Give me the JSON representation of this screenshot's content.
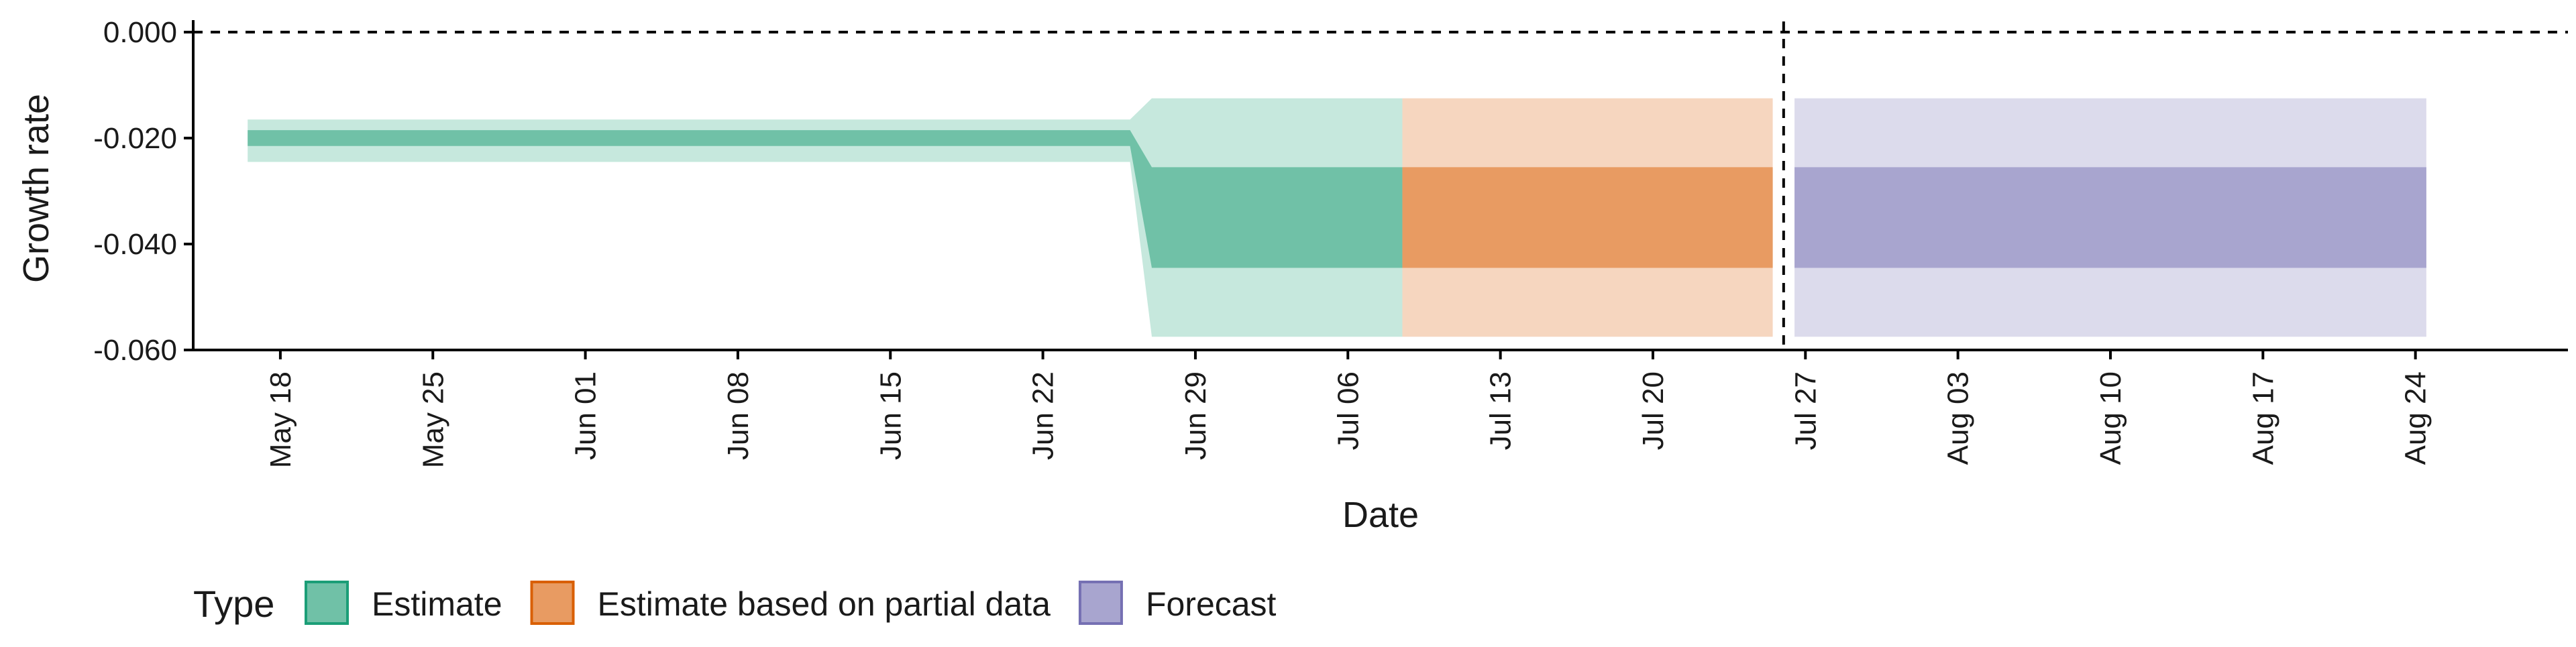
{
  "chart_data": {
    "type": "area",
    "title": "",
    "xlabel": "Date",
    "ylabel": "Growth rate",
    "x_type": "date",
    "xlim": [
      "2020-05-14",
      "2020-08-31"
    ],
    "ylim": [
      -0.06,
      0.001
    ],
    "y_ticks": [
      {
        "value": 0.0,
        "label": "0.000"
      },
      {
        "value": -0.02,
        "label": "-0.020"
      },
      {
        "value": -0.04,
        "label": "-0.040"
      },
      {
        "value": -0.06,
        "label": "-0.060"
      }
    ],
    "x_ticks": [
      {
        "date": "2020-05-18",
        "label": "May 18"
      },
      {
        "date": "2020-05-25",
        "label": "May 25"
      },
      {
        "date": "2020-06-01",
        "label": "Jun 01"
      },
      {
        "date": "2020-06-08",
        "label": "Jun 08"
      },
      {
        "date": "2020-06-15",
        "label": "Jun 15"
      },
      {
        "date": "2020-06-22",
        "label": "Jun 22"
      },
      {
        "date": "2020-06-29",
        "label": "Jun 29"
      },
      {
        "date": "2020-07-06",
        "label": "Jul 06"
      },
      {
        "date": "2020-07-13",
        "label": "Jul 13"
      },
      {
        "date": "2020-07-20",
        "label": "Jul 20"
      },
      {
        "date": "2020-07-27",
        "label": "Jul 27"
      },
      {
        "date": "2020-08-03",
        "label": "Aug 03"
      },
      {
        "date": "2020-08-10",
        "label": "Aug 10"
      },
      {
        "date": "2020-08-17",
        "label": "Aug 17"
      },
      {
        "date": "2020-08-24",
        "label": "Aug 24"
      }
    ],
    "reference_lines": [
      {
        "orientation": "horizontal",
        "y": 0.0,
        "style": "dashed"
      },
      {
        "orientation": "vertical",
        "x": "2020-07-26",
        "style": "dashed"
      }
    ],
    "series": [
      {
        "name": "Estimate",
        "color": "#70C1A7",
        "light_color": "#C6E8DD",
        "points": [
          {
            "date": "2020-05-17",
            "outer_low": -0.0245,
            "inner_low": -0.0215,
            "inner_high": -0.0185,
            "outer_high": -0.0165
          },
          {
            "date": "2020-06-26",
            "outer_low": -0.0245,
            "inner_low": -0.0215,
            "inner_high": -0.0185,
            "outer_high": -0.0165
          },
          {
            "date": "2020-06-27",
            "outer_low": -0.0575,
            "inner_low": -0.0445,
            "inner_high": -0.0255,
            "outer_high": -0.0125
          },
          {
            "date": "2020-07-08",
            "outer_low": -0.0575,
            "inner_low": -0.0445,
            "inner_high": -0.0255,
            "outer_high": -0.0125
          }
        ]
      },
      {
        "name": "Estimate based on partial data",
        "color": "#E89B62",
        "light_color": "#F6D6BF",
        "points": [
          {
            "date": "2020-07-09",
            "outer_low": -0.0575,
            "inner_low": -0.0445,
            "inner_high": -0.0255,
            "outer_high": -0.0125
          },
          {
            "date": "2020-07-25",
            "outer_low": -0.0575,
            "inner_low": -0.0445,
            "inner_high": -0.0255,
            "outer_high": -0.0125
          }
        ]
      },
      {
        "name": "Forecast",
        "color": "#A8A5CF",
        "light_color": "#DCDBEC",
        "points": [
          {
            "date": "2020-07-27",
            "outer_low": -0.0575,
            "inner_low": -0.0445,
            "inner_high": -0.0255,
            "outer_high": -0.0125
          },
          {
            "date": "2020-08-24",
            "outer_low": -0.0575,
            "inner_low": -0.0445,
            "inner_high": -0.0255,
            "outer_high": -0.0125
          }
        ]
      }
    ],
    "legend": {
      "title": "Type",
      "position": "bottom-left",
      "items": [
        {
          "label": "Estimate",
          "fill": "#70C1A7",
          "border": "#1B9E77"
        },
        {
          "label": "Estimate based on partial data",
          "fill": "#E89B62",
          "border": "#D95F02"
        },
        {
          "label": "Forecast",
          "fill": "#A8A5CF",
          "border": "#7570B3"
        }
      ]
    }
  }
}
